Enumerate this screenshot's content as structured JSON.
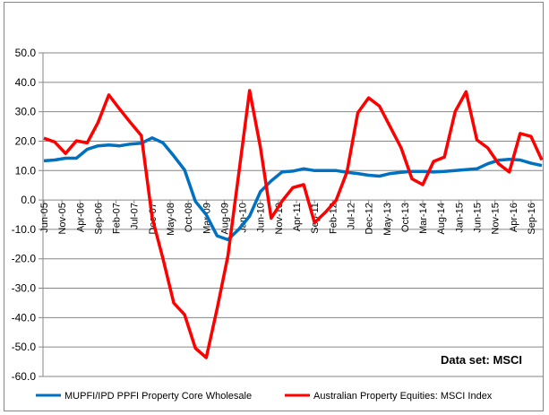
{
  "chart_data": {
    "type": "line",
    "title": "",
    "xlabel": "",
    "ylabel": "",
    "ylim": [
      -60,
      50
    ],
    "ytick_step": 10,
    "yticks": [
      "50.0",
      "40.0",
      "30.0",
      "20.0",
      "10.0",
      "0.0",
      "-10.0",
      "-20.0",
      "-30.0",
      "-40.0",
      "-50.0",
      "-60.0"
    ],
    "grid": true,
    "x_start": "Jun-05",
    "x_frequency": "quarterly",
    "x_tick_interval_months": 5,
    "xticks": [
      "Jun-05",
      "Nov-05",
      "Apr-06",
      "Sep-06",
      "Feb-07",
      "Jul-07",
      "Dec-07",
      "May-08",
      "Oct-08",
      "Mar-09",
      "Aug-09",
      "Jan-10",
      "Jun-10",
      "Nov-10",
      "Apr-11",
      "Sep-11",
      "Feb-12",
      "Jul-12",
      "Dec-12",
      "May-13",
      "Oct-13",
      "Mar-14",
      "Aug-14",
      "Jan-15",
      "Jun-15",
      "Nov-15",
      "Apr-16",
      "Sep-16"
    ],
    "legend_position": "bottom",
    "series": [
      {
        "name": "MUPFI/IPD PPFI Property Core Wholesale",
        "color": "#0070C0",
        "values": [
          13.3,
          13.6,
          14.2,
          14.2,
          17.2,
          18.4,
          18.7,
          18.4,
          19.0,
          19.3,
          21.1,
          19.4,
          15.0,
          10.2,
          -0.5,
          -5.0,
          -12.2,
          -13.5,
          -10.0,
          -5.5,
          2.8,
          6.5,
          9.5,
          9.8,
          10.6,
          10.0,
          10.0,
          10.0,
          9.4,
          9.0,
          8.4,
          8.1,
          9.0,
          9.4,
          9.7,
          9.7,
          9.5,
          9.7,
          10.0,
          10.3,
          10.6,
          12.3,
          13.5,
          13.8,
          13.6,
          12.5,
          11.7
        ]
      },
      {
        "name": "Australian Property Equities: MSCI Index",
        "color": "#FF0000",
        "values": [
          21.0,
          19.7,
          15.8,
          20.1,
          19.4,
          26.3,
          35.7,
          30.9,
          26.3,
          21.9,
          -6.0,
          -20.0,
          -35.0,
          -39.0,
          -50.4,
          -53.6,
          -37.0,
          -19.0,
          9.0,
          37.2,
          18.0,
          -6.2,
          -0.4,
          4.2,
          5.2,
          -7.7,
          -4.2,
          -0.1,
          9.5,
          29.6,
          34.7,
          31.9,
          24.8,
          17.7,
          7.2,
          5.2,
          13.1,
          14.6,
          30.1,
          36.8,
          20.4,
          17.7,
          12.3,
          9.5,
          22.6,
          21.6,
          13.6
        ]
      }
    ],
    "annotation": "Data set: MSCI"
  }
}
